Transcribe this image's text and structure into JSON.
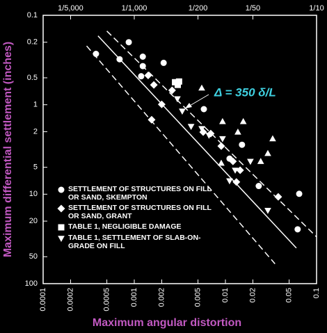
{
  "chart_data": {
    "type": "scatter",
    "xlabel": "Maximum angular distortion",
    "ylabel": "Maximum differential settlement (inches)",
    "annotation": "Δ = 350 δ/L",
    "xscale": "log",
    "yscale": "log",
    "y_inverted": true,
    "xlim": [
      0.0001,
      0.1
    ],
    "ylim": [
      0.1,
      100
    ],
    "xticks": [
      0.0001,
      0.0002,
      0.0005,
      0.001,
      0.002,
      0.005,
      0.01,
      0.02,
      0.05,
      0.1
    ],
    "yticks": [
      0.1,
      0.2,
      0.5,
      1,
      2,
      5,
      10,
      20,
      50,
      100
    ],
    "top_xticks": [
      {
        "value": 0.0002,
        "label": "1/5,000"
      },
      {
        "value": 0.001,
        "label": "1/1,000"
      },
      {
        "value": 0.005,
        "label": "1/200"
      },
      {
        "value": 0.02,
        "label": "1/50"
      },
      {
        "value": 0.1,
        "label": "1/10"
      }
    ],
    "legend": "lower left",
    "reference_lines": [
      {
        "x": [
          0.0005,
          0.1
        ],
        "y": [
          0.15,
          30
        ],
        "dashed": true
      },
      {
        "x": [
          0.0004,
          0.06
        ],
        "y": [
          0.17,
          40
        ],
        "dashed": false
      },
      {
        "x": [
          0.0003,
          0.035
        ],
        "y": [
          0.22,
          60
        ],
        "dashed": true
      }
    ],
    "series": [
      {
        "name": "SETTLEMENT OF STRUCTURES ON FILL OR SAND, SKEMPTON",
        "marker": "circle",
        "color": "#ffffff",
        "x": [
          0.00038,
          0.00069,
          0.00087,
          0.00124,
          0.00124,
          0.00119,
          0.0021,
          0.0058,
          0.0111,
          0.0152,
          0.0232,
          0.062,
          0.0645
        ],
        "values": [
          0.27,
          0.31,
          0.2,
          0.29,
          0.37,
          0.48,
          0.34,
          1.12,
          4.0,
          2.8,
          8.1,
          24.7,
          9.9
        ]
      },
      {
        "name": "SETTLEMENT OF STRUCTURES ON FILL OR SAND, GRANT",
        "marker": "diamond",
        "color": "#ffffff",
        "x": [
          0.00142,
          0.00164,
          0.0026,
          0.002,
          0.00155,
          0.0057,
          0.0069,
          0.009,
          0.0121,
          0.0132,
          0.038,
          0.0145
        ],
        "values": [
          0.47,
          0.6,
          0.69,
          0.99,
          1.47,
          2.02,
          2.1,
          2.9,
          4.3,
          7.3,
          10.7,
          5.4
        ]
      },
      {
        "name": "TABLE 1, NEGLIGIBLE DAMAGE",
        "marker": "square",
        "color": "#ffffff",
        "x": [
          0.0028,
          0.0031,
          0.003
        ],
        "values": [
          0.56,
          0.55,
          0.6
        ]
      },
      {
        "name": "TABLE 1, SETTLEMENT OF SLAB-ON-GRADE ON FILL",
        "marker": "triangle-down",
        "color": "#ffffff",
        "x": [
          0.00297,
          0.00336,
          0.0042,
          0.0055,
          0.0066,
          0.0093,
          0.0111,
          0.0128,
          0.0188,
          0.0292
        ],
        "values": [
          0.86,
          1.18,
          1.75,
          1.85,
          2.2,
          2.4,
          7.1,
          5.4,
          4.3,
          15.2
        ]
      },
      {
        "marker": "triangle-up",
        "color": "#ffffff",
        "x": [
          0.0055,
          0.0093,
          0.0137,
          0.0157,
          0.0244,
          0.0292,
          0.033,
          0.009
        ],
        "values": [
          0.65,
          1.54,
          2.02,
          1.54,
          4.3,
          3.5,
          2.4,
          4.5
        ]
      }
    ]
  }
}
